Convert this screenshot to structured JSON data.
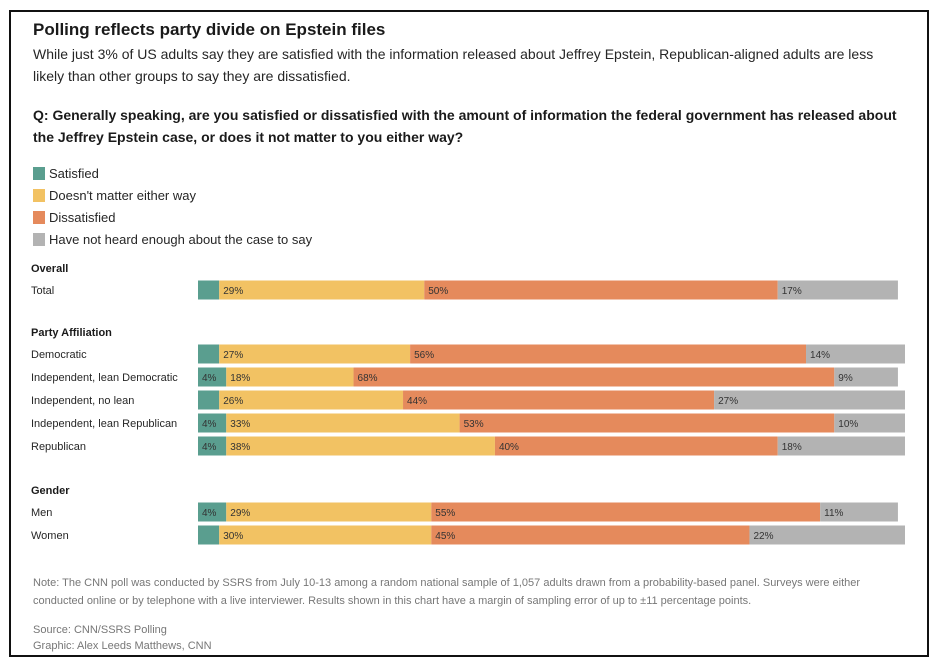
{
  "title": "Polling reflects party divide on Epstein files",
  "subtitle": "While just 3% of US adults say they are satisfied with the information released about Jeffrey Epstein, Republican-aligned adults are less likely than other groups to say they are dissatisfied.",
  "question": "Q: Generally speaking, are you satisfied or dissatisfied with the amount of information the federal government has released about the Jeffrey Epstein case, or does it not matter to you either way?",
  "legend": [
    {
      "label": "Satisfied",
      "color": "#5a9e8f"
    },
    {
      "label": "Doesn't matter either way",
      "color": "#f2c263"
    },
    {
      "label": "Dissatisfied",
      "color": "#e58a5c"
    },
    {
      "label": "Have not heard enough about the case to say",
      "color": "#b3b3b3"
    }
  ],
  "chart_data": {
    "type": "bar",
    "orientation": "horizontal",
    "stacked": true,
    "xlim": [
      0,
      100
    ],
    "series": [
      {
        "name": "Satisfied",
        "color": "#5a9e8f"
      },
      {
        "name": "Doesn't matter either way",
        "color": "#f2c263"
      },
      {
        "name": "Dissatisfied",
        "color": "#e58a5c"
      },
      {
        "name": "Have not heard enough about the case to say",
        "color": "#b3b3b3"
      }
    ],
    "groups": [
      {
        "name": "Overall",
        "rows": [
          {
            "label": "Total",
            "values": [
              3,
              29,
              50,
              17
            ],
            "labels": [
              "",
              "29%",
              "50%",
              "17%"
            ]
          }
        ]
      },
      {
        "name": "Party Affiliation",
        "rows": [
          {
            "label": "Democratic",
            "values": [
              3,
              27,
              56,
              14
            ],
            "labels": [
              "",
              "27%",
              "56%",
              "14%"
            ]
          },
          {
            "label": "Independent, lean Democratic",
            "values": [
              4,
              18,
              68,
              9
            ],
            "labels": [
              "4%",
              "18%",
              "68%",
              "9%"
            ]
          },
          {
            "label": "Independent, no lean",
            "values": [
              3,
              26,
              44,
              27
            ],
            "labels": [
              "",
              "26%",
              "44%",
              "27%"
            ]
          },
          {
            "label": "Independent, lean Republican",
            "values": [
              4,
              33,
              53,
              10
            ],
            "labels": [
              "4%",
              "33%",
              "53%",
              "10%"
            ]
          },
          {
            "label": "Republican",
            "values": [
              4,
              38,
              40,
              18
            ],
            "labels": [
              "4%",
              "38%",
              "40%",
              "18%"
            ]
          }
        ]
      },
      {
        "name": "Gender",
        "rows": [
          {
            "label": "Men",
            "values": [
              4,
              29,
              55,
              11
            ],
            "labels": [
              "4%",
              "29%",
              "55%",
              "11%"
            ]
          },
          {
            "label": "Women",
            "values": [
              3,
              30,
              45,
              22
            ],
            "labels": [
              "",
              "30%",
              "45%",
              "22%"
            ]
          }
        ]
      }
    ]
  },
  "note": "Note: The CNN poll was conducted by SSRS from July 10-13 among a random national sample of 1,057 adults drawn from a probability-based panel. Surveys were either conducted online or by telephone with a live interviewer. Results shown in this chart have a margin of sampling error of up to ±11 percentage points.",
  "source": "Source: CNN/SSRS Polling",
  "credit": "Graphic: Alex Leeds Matthews, CNN"
}
